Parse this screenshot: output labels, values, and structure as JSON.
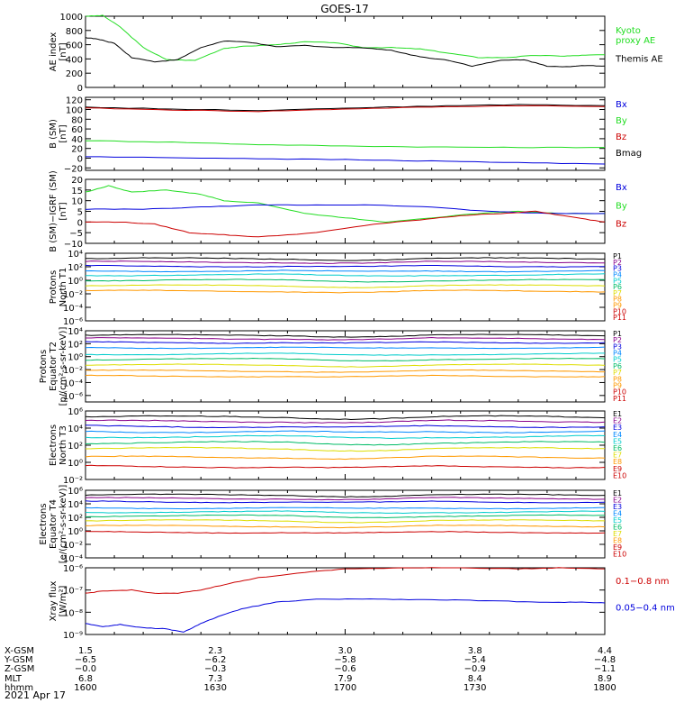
{
  "title": "GOES-17",
  "date": "2021 Apr 17",
  "colors": {
    "black": "#000000",
    "green": "#22dd22",
    "blue": "#0000dd",
    "red": "#cc0000",
    "cyan": "#00cccc",
    "yellow": "#dddd00",
    "orange": "#ff9900"
  },
  "chart_data": [
    {
      "type": "line",
      "id": "ae",
      "ylabel": [
        "AE index",
        "[nT]"
      ],
      "ylim": [
        0,
        1000
      ],
      "yticks": [
        0,
        200,
        400,
        600,
        800,
        1000
      ],
      "ytick_labels": [
        "0",
        "200",
        "400",
        "600",
        "800",
        "1000"
      ],
      "legend": [
        {
          "name": "Kyoto\nproxy AE",
          "color": "green"
        },
        {
          "name": "Themis AE",
          "color": "black"
        }
      ],
      "series": [
        {
          "name": "Kyoto proxy AE",
          "color": "green",
          "x": [
            0,
            3,
            6,
            10,
            14,
            19,
            24,
            28,
            33,
            38,
            43,
            48,
            53,
            58,
            63,
            68,
            73,
            78,
            83,
            86,
            90
          ],
          "y": [
            1000,
            1010,
            850,
            560,
            390,
            380,
            550,
            580,
            600,
            640,
            630,
            560,
            560,
            540,
            480,
            420,
            420,
            450,
            440,
            450,
            460
          ]
        },
        {
          "name": "Themis AE",
          "color": "black",
          "x": [
            0,
            2,
            5,
            8,
            12,
            16,
            20,
            24,
            28,
            33,
            38,
            43,
            48,
            53,
            58,
            63,
            67,
            72,
            76,
            80,
            84,
            87,
            90
          ],
          "y": [
            700,
            680,
            620,
            420,
            360,
            390,
            560,
            650,
            640,
            570,
            590,
            560,
            560,
            520,
            430,
            380,
            300,
            380,
            390,
            300,
            290,
            310,
            300
          ]
        }
      ]
    },
    {
      "type": "line",
      "id": "bsm",
      "ylabel": [
        "B (SM)",
        "[nT]"
      ],
      "ylim": [
        -25,
        125
      ],
      "yticks": [
        -20,
        0,
        20,
        40,
        60,
        80,
        100,
        120
      ],
      "ytick_labels": [
        "−20",
        "0",
        "20",
        "40",
        "60",
        "80",
        "100",
        "120"
      ],
      "legend": [
        {
          "name": "Bx",
          "color": "blue"
        },
        {
          "name": "By",
          "color": "green"
        },
        {
          "name": "Bz",
          "color": "red"
        },
        {
          "name": "Bmag",
          "color": "black"
        }
      ],
      "series": [
        {
          "name": "Bmag",
          "color": "black",
          "x": [
            0,
            15,
            30,
            45,
            60,
            75,
            90
          ],
          "y": [
            105,
            101,
            98,
            103,
            107,
            110,
            108
          ]
        },
        {
          "name": "Bz",
          "color": "red",
          "x": [
            0,
            15,
            30,
            45,
            60,
            75,
            90
          ],
          "y": [
            103,
            99,
            96,
            101,
            105,
            108,
            106
          ]
        },
        {
          "name": "By",
          "color": "green",
          "x": [
            0,
            15,
            30,
            45,
            60,
            75,
            90
          ],
          "y": [
            36,
            33,
            28,
            25,
            23,
            22,
            22
          ]
        },
        {
          "name": "Bx",
          "color": "blue",
          "x": [
            0,
            15,
            30,
            45,
            60,
            75,
            90
          ],
          "y": [
            3,
            1,
            -1,
            -3,
            -6,
            -9,
            -12
          ]
        }
      ]
    },
    {
      "type": "line",
      "id": "bigrf",
      "ylabel": [
        "B (SM)−IGRF (SM)",
        "[nT]"
      ],
      "ylim": [
        -10,
        20
      ],
      "yticks": [
        -10,
        -5,
        0,
        5,
        10,
        15,
        20
      ],
      "ytick_labels": [
        "−10",
        "−5",
        "0",
        "5",
        "10",
        "15",
        "20"
      ],
      "legend": [
        {
          "name": "Bx",
          "color": "blue"
        },
        {
          "name": "By",
          "color": "green"
        },
        {
          "name": "Bz",
          "color": "red"
        }
      ],
      "series": [
        {
          "name": "By",
          "color": "green",
          "x": [
            0,
            4,
            8,
            14,
            20,
            24,
            30,
            38,
            45,
            52,
            60,
            68,
            75,
            82,
            90
          ],
          "y": [
            14,
            17,
            14,
            15,
            13,
            10,
            9,
            4,
            2,
            0,
            2,
            4,
            5,
            4,
            4
          ]
        },
        {
          "name": "Bx",
          "color": "blue",
          "x": [
            0,
            10,
            20,
            30,
            40,
            50,
            60,
            70,
            80,
            90
          ],
          "y": [
            6,
            6,
            7,
            8,
            8,
            8,
            7,
            5,
            4,
            4
          ]
        },
        {
          "name": "Bz",
          "color": "red",
          "x": [
            0,
            6,
            12,
            18,
            24,
            30,
            40,
            50,
            58,
            65,
            72,
            78,
            85,
            90
          ],
          "y": [
            0,
            0,
            -1,
            -5,
            -6,
            -7,
            -5,
            -1,
            1,
            3,
            4,
            5,
            2,
            0
          ]
        }
      ]
    },
    {
      "type": "line",
      "id": "pn",
      "ylabel": [
        "Protons",
        "North T1"
      ],
      "log": true,
      "ylim": [
        -6,
        4
      ],
      "yticks": [
        -6,
        -4,
        -2,
        0,
        2,
        4
      ],
      "ytick_labels": [
        "10⁻⁶",
        "10⁻⁴",
        "10⁻²",
        "10⁰",
        "10²",
        "10⁴"
      ],
      "channels": [
        "P1",
        "P2",
        "P3",
        "P4",
        "P5",
        "P6",
        "P7",
        "P8",
        "P9",
        "P10",
        "P11"
      ],
      "channel_colors": [
        "black",
        "#880088",
        "blue",
        "#0088ff",
        "cyan",
        "#00bb66",
        "yellow",
        "orange",
        "orange",
        "red",
        "red"
      ],
      "levels": [
        3.2,
        2.7,
        2.1,
        1.4,
        0.8,
        0.0,
        -0.8,
        -1.6
      ]
    },
    {
      "type": "line",
      "id": "pe",
      "ylabel": [
        "Protons",
        "Equator T2",
        "[p/(cm²-s-sr-keV)]"
      ],
      "log": true,
      "ylim": [
        -7,
        4
      ],
      "yticks": [
        -6,
        -4,
        -2,
        0,
        2,
        4
      ],
      "ytick_labels": [
        "10⁻⁶",
        "10⁻⁴",
        "10⁻²",
        "10⁰",
        "10²",
        "10⁴"
      ],
      "channels": [
        "P1",
        "P2",
        "P3",
        "P4",
        "P5",
        "P6",
        "P7",
        "P8",
        "P9",
        "P10",
        "P11"
      ],
      "channel_colors": [
        "black",
        "#880088",
        "blue",
        "#0088ff",
        "cyan",
        "#00bb66",
        "yellow",
        "orange",
        "orange",
        "red",
        "red"
      ],
      "levels": [
        3.3,
        2.8,
        2.2,
        1.4,
        0.4,
        -0.4,
        -1.3,
        -2.2,
        -3.0
      ]
    },
    {
      "type": "line",
      "id": "en",
      "ylabel": [
        "Electrons",
        "North T3"
      ],
      "log": true,
      "ylim": [
        -2,
        6
      ],
      "yticks": [
        -2,
        0,
        2,
        4,
        6
      ],
      "ytick_labels": [
        "10⁻²",
        "10⁰",
        "10²",
        "10⁴",
        "10⁶"
      ],
      "channels": [
        "E1",
        "E2",
        "E3",
        "E4",
        "E5",
        "E6",
        "E7",
        "E8",
        "E9",
        "E10"
      ],
      "channel_colors": [
        "black",
        "#880088",
        "blue",
        "#0088ff",
        "cyan",
        "#00bb66",
        "yellow",
        "orange",
        "red",
        "red"
      ],
      "levels": [
        5.3,
        4.8,
        4.2,
        3.6,
        3.0,
        2.3,
        1.6,
        0.6,
        -0.5
      ]
    },
    {
      "type": "line",
      "id": "ee",
      "ylabel": [
        "Electrons",
        "Equator T4",
        "[e/(cm²-s-sr-keV)]"
      ],
      "log": true,
      "ylim": [
        -4,
        6
      ],
      "yticks": [
        -4,
        -2,
        0,
        2,
        4,
        6
      ],
      "ytick_labels": [
        "10⁻⁴",
        "10⁻²",
        "10⁰",
        "10²",
        "10⁴",
        "10⁶"
      ],
      "channels": [
        "E1",
        "E2",
        "E3",
        "E4",
        "E5",
        "E6",
        "E7",
        "E8",
        "E9",
        "E10"
      ],
      "channel_colors": [
        "black",
        "#880088",
        "blue",
        "#0088ff",
        "cyan",
        "#00bb66",
        "yellow",
        "orange",
        "red",
        "red"
      ],
      "levels": [
        5.3,
        4.8,
        4.3,
        3.4,
        2.8,
        2.2,
        1.5,
        0.7,
        -0.2
      ]
    },
    {
      "type": "line",
      "id": "xray",
      "ylabel": [
        "Xray flux",
        "[W/m²]"
      ],
      "log": true,
      "ylim": [
        -9,
        -6
      ],
      "yticks": [
        -9,
        -8,
        -7,
        -6
      ],
      "ytick_labels": [
        "10⁻⁹",
        "10⁻⁸",
        "10⁻⁷",
        "10⁻⁶"
      ],
      "legend": [
        {
          "name": "0.1−0.8 nm",
          "color": "red"
        },
        {
          "name": "0.05−0.4 nm",
          "color": "blue"
        }
      ],
      "series": [
        {
          "name": "0.1-0.8 nm",
          "color": "red",
          "x": [
            0,
            3,
            8,
            12,
            16,
            20,
            25,
            30,
            38,
            45,
            55,
            65,
            75,
            82,
            90
          ],
          "y": [
            -7.15,
            -7.05,
            -7.0,
            -7.15,
            -7.15,
            -7.0,
            -6.7,
            -6.45,
            -6.2,
            -6.05,
            -6.0,
            -6.0,
            -6.05,
            -6.0,
            -6.05
          ]
        },
        {
          "name": "0.05-0.4 nm",
          "color": "blue",
          "x": [
            0,
            3,
            6,
            10,
            14,
            17,
            20,
            23,
            27,
            33,
            40,
            48,
            56,
            64,
            72,
            80,
            86,
            90
          ],
          "y": [
            -8.5,
            -8.65,
            -8.55,
            -8.7,
            -8.75,
            -8.9,
            -8.5,
            -8.2,
            -7.85,
            -7.55,
            -7.42,
            -7.4,
            -7.43,
            -7.45,
            -7.5,
            -7.55,
            -7.55,
            -7.58
          ]
        }
      ]
    }
  ],
  "xaxis": {
    "row_labels": [
      "X-GSM",
      "Y-GSM",
      "Z-GSM",
      "MLT",
      "hhmm"
    ],
    "columns": [
      {
        "vals": [
          "1.5",
          "−6.5",
          "−0.0",
          "6.8",
          "1600"
        ]
      },
      {
        "vals": [
          "2.3",
          "−6.2",
          "−0.3",
          "7.3",
          "1630"
        ]
      },
      {
        "vals": [
          "3.0",
          "−5.8",
          "−0.6",
          "7.9",
          "1700"
        ]
      },
      {
        "vals": [
          "3.8",
          "−5.4",
          "−0.9",
          "8.4",
          "1730"
        ]
      },
      {
        "vals": [
          "4.4",
          "−4.8",
          "−1.1",
          "8.9",
          "1800"
        ]
      }
    ]
  }
}
